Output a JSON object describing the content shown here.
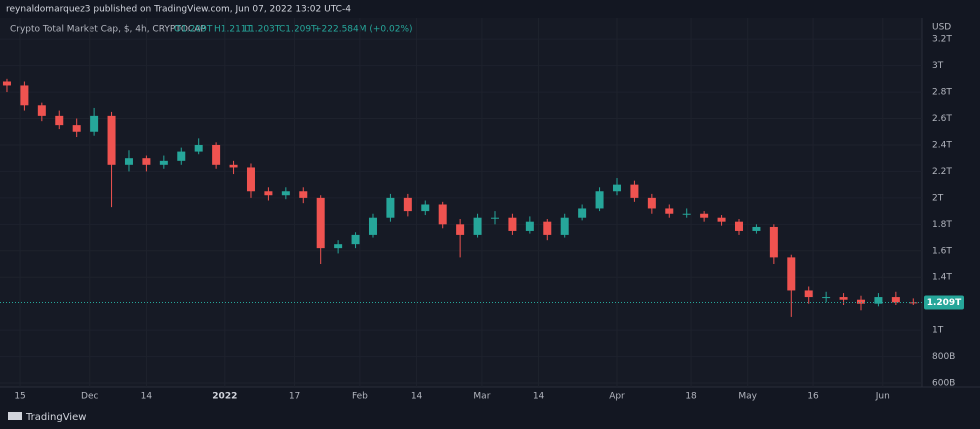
{
  "header": "reynaldomarquez3 published on TradingView.com, Jun 07, 2022 13:02 UTC-4",
  "footer": "TradingView",
  "chart_data": {
    "type": "candlestick",
    "title": "Crypto Total Market Cap, $, 4h, CRYPTOCAP",
    "ohlc_legend": {
      "open": "O1.209T",
      "high": "H1.211T",
      "low": "L1.203T",
      "close": "C1.209T",
      "change": "+222.584M (+0.02%)"
    },
    "currency": "USD",
    "x": [
      -3,
      1,
      5,
      9,
      13,
      17,
      21,
      25,
      29,
      33,
      37,
      41,
      45,
      49,
      53,
      57,
      61,
      65,
      69,
      73,
      77,
      81,
      85,
      89,
      93,
      97,
      101,
      105,
      109,
      113,
      117,
      121,
      125,
      129,
      133,
      137,
      141,
      145,
      149,
      153,
      157,
      161,
      165,
      169,
      173,
      177,
      181,
      185,
      189,
      193,
      197,
      201,
      205
    ],
    "open": [
      2.88,
      2.85,
      2.7,
      2.62,
      2.55,
      2.5,
      2.62,
      2.25,
      2.3,
      2.25,
      2.28,
      2.35,
      2.4,
      2.25,
      2.23,
      2.05,
      2.02,
      2.05,
      2.0,
      1.62,
      1.65,
      1.72,
      1.85,
      2.0,
      1.9,
      1.95,
      1.8,
      1.72,
      1.85,
      1.85,
      1.75,
      1.82,
      1.72,
      1.85,
      1.92,
      2.05,
      2.1,
      2.0,
      1.92,
      1.88,
      1.88,
      1.85,
      1.82,
      1.75,
      1.78,
      1.55,
      1.3,
      1.25,
      1.25,
      1.23,
      1.2,
      1.25,
      1.21
    ],
    "high": [
      2.9,
      2.88,
      2.72,
      2.66,
      2.6,
      2.68,
      2.65,
      2.36,
      2.32,
      2.32,
      2.38,
      2.45,
      2.42,
      2.28,
      2.26,
      2.08,
      2.08,
      2.08,
      2.02,
      1.68,
      1.74,
      1.88,
      2.03,
      2.03,
      1.98,
      1.97,
      1.84,
      1.88,
      1.9,
      1.88,
      1.86,
      1.84,
      1.88,
      1.95,
      2.08,
      2.15,
      2.13,
      2.03,
      1.95,
      1.92,
      1.9,
      1.87,
      1.84,
      1.8,
      1.8,
      1.57,
      1.33,
      1.29,
      1.28,
      1.26,
      1.28,
      1.29,
      1.24
    ],
    "low": [
      2.8,
      2.66,
      2.58,
      2.52,
      2.46,
      2.47,
      1.93,
      2.2,
      2.2,
      2.22,
      2.25,
      2.33,
      2.22,
      2.18,
      2.0,
      1.98,
      1.99,
      1.96,
      1.5,
      1.58,
      1.62,
      1.7,
      1.82,
      1.86,
      1.87,
      1.77,
      1.55,
      1.7,
      1.8,
      1.72,
      1.73,
      1.68,
      1.7,
      1.83,
      1.9,
      2.02,
      1.97,
      1.88,
      1.85,
      1.85,
      1.82,
      1.79,
      1.72,
      1.73,
      1.5,
      1.1,
      1.2,
      1.21,
      1.19,
      1.15,
      1.18,
      1.19,
      1.19
    ],
    "close": [
      2.85,
      2.7,
      2.62,
      2.55,
      2.5,
      2.62,
      2.25,
      2.3,
      2.25,
      2.28,
      2.35,
      2.4,
      2.25,
      2.23,
      2.05,
      2.02,
      2.05,
      2.0,
      1.62,
      1.65,
      1.72,
      1.85,
      2.0,
      1.9,
      1.95,
      1.8,
      1.72,
      1.85,
      1.85,
      1.75,
      1.82,
      1.72,
      1.85,
      1.92,
      2.05,
      2.1,
      2.0,
      1.92,
      1.88,
      1.88,
      1.85,
      1.82,
      1.75,
      1.78,
      1.55,
      1.3,
      1.25,
      1.25,
      1.23,
      1.2,
      1.25,
      1.21,
      1.209
    ],
    "up_color": "#26a69a",
    "down_color": "#ef5350",
    "last_price": {
      "value": 1.209,
      "label": "1.209T"
    },
    "xlim": [
      -4.6,
      207
    ],
    "xticks": [
      {
        "value": 0,
        "label": "15"
      },
      {
        "value": 16,
        "label": "Dec"
      },
      {
        "value": 29,
        "label": "14"
      },
      {
        "value": 47,
        "label": "2022"
      },
      {
        "value": 63,
        "label": "17"
      },
      {
        "value": 78,
        "label": "Feb"
      },
      {
        "value": 91,
        "label": "14"
      },
      {
        "value": 106,
        "label": "Mar"
      },
      {
        "value": 119,
        "label": "14"
      },
      {
        "value": 137,
        "label": "Apr"
      },
      {
        "value": 154,
        "label": "18"
      },
      {
        "value": 167,
        "label": "May"
      },
      {
        "value": 182,
        "label": "16"
      },
      {
        "value": 198,
        "label": "Jun"
      }
    ],
    "ylim": [
      0.57,
      3.36
    ],
    "yticks": [
      {
        "value": 0.6,
        "label": "600B"
      },
      {
        "value": 0.8,
        "label": "800B"
      },
      {
        "value": 1,
        "label": "1T"
      },
      {
        "value": 1.4,
        "label": "1.4T"
      },
      {
        "value": 1.6,
        "label": "1.6T"
      },
      {
        "value": 1.8,
        "label": "1.8T"
      },
      {
        "value": 2,
        "label": "2T"
      },
      {
        "value": 2.2,
        "label": "2.2T"
      },
      {
        "value": 2.4,
        "label": "2.4T"
      },
      {
        "value": 2.6,
        "label": "2.6T"
      },
      {
        "value": 2.8,
        "label": "2.8T"
      },
      {
        "value": 3,
        "label": "3T"
      },
      {
        "value": 3.2,
        "label": "3.2T"
      }
    ],
    "grid": true
  }
}
